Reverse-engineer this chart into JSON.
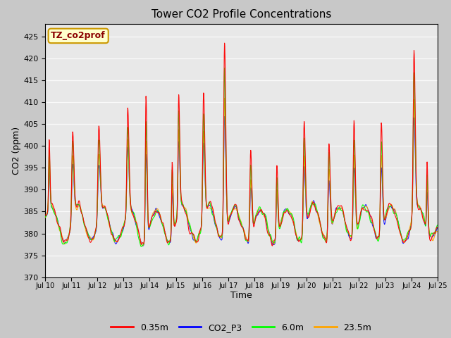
{
  "title": "Tower CO2 Profile Concentrations",
  "xlabel": "Time",
  "ylabel": "CO2 (ppm)",
  "ylim": [
    370,
    428
  ],
  "yticks": [
    370,
    375,
    380,
    385,
    390,
    395,
    400,
    405,
    410,
    415,
    420,
    425
  ],
  "series_labels": [
    "0.35m",
    "CO2_P3",
    "6.0m",
    "23.5m"
  ],
  "series_colors": [
    "red",
    "blue",
    "lime",
    "orange"
  ],
  "annotation_text": "TZ_co2prof",
  "annotation_bg": "#ffffcc",
  "annotation_border": "#cc9900",
  "fig_bg": "#c8c8c8",
  "plot_bg": "#e8e8e8",
  "n_days": 15,
  "start_day": 10,
  "n_points": 1440
}
